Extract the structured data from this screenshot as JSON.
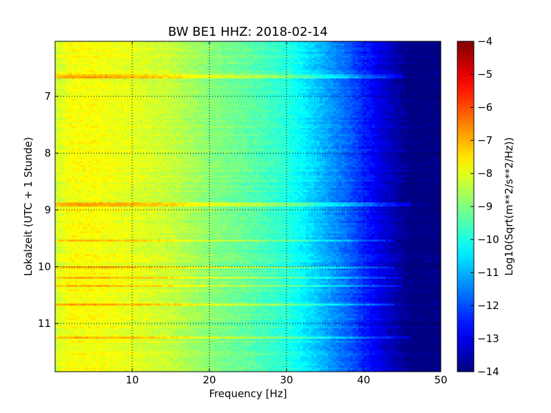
{
  "chart_data": {
    "type": "heatmap",
    "title": "BW BE1 HHZ: 2018-02-14",
    "xlabel": "Frequency [Hz]",
    "ylabel": "Lokalzeit (UTC + 1 Stunde)",
    "xlim": [
      0,
      50
    ],
    "ylim": [
      6.03,
      11.85
    ],
    "y_inverted": true,
    "x_ticks": [
      10,
      20,
      30,
      40,
      50
    ],
    "x_tick_labels": [
      "10",
      "20",
      "30",
      "40",
      "50"
    ],
    "y_ticks": [
      7,
      8,
      9,
      10,
      11
    ],
    "y_tick_labels": [
      "7",
      "8",
      "9",
      "10",
      "11"
    ],
    "grid": true,
    "colormap": "jet",
    "colorbar": {
      "label": "Log10(Sqrt(m**2/s**2/Hz))",
      "range": [
        -14,
        -4
      ],
      "ticks": [
        -4,
        -5,
        -6,
        -7,
        -8,
        -9,
        -10,
        -11,
        -12,
        -13,
        -14
      ],
      "tick_labels": [
        "−4",
        "−5",
        "−6",
        "−7",
        "−8",
        "−9",
        "−10",
        "−11",
        "−12",
        "−13",
        "−14"
      ]
    },
    "spectral_profile": {
      "frequency_hz": [
        0,
        2,
        5,
        10,
        15,
        20,
        25,
        30,
        32,
        34,
        36,
        38,
        40,
        42,
        44,
        46,
        50
      ],
      "log10_amplitude": [
        -8.2,
        -7.8,
        -7.8,
        -8.0,
        -8.3,
        -8.9,
        -9.3,
        -9.9,
        -10.3,
        -10.8,
        -11.3,
        -11.8,
        -12.4,
        -13.0,
        -13.5,
        -14.0,
        -14.0
      ]
    },
    "bright_bands": [
      {
        "time": 6.65,
        "fmax": 45
      },
      {
        "time": 8.9,
        "fmax": 46
      },
      {
        "time": 9.55,
        "fmax": 44
      },
      {
        "time": 10.0,
        "fmax": 44
      },
      {
        "time": 10.2,
        "fmax": 45
      },
      {
        "time": 10.35,
        "fmax": 45
      },
      {
        "time": 10.68,
        "fmax": 44
      },
      {
        "time": 11.25,
        "fmax": 46
      }
    ]
  }
}
